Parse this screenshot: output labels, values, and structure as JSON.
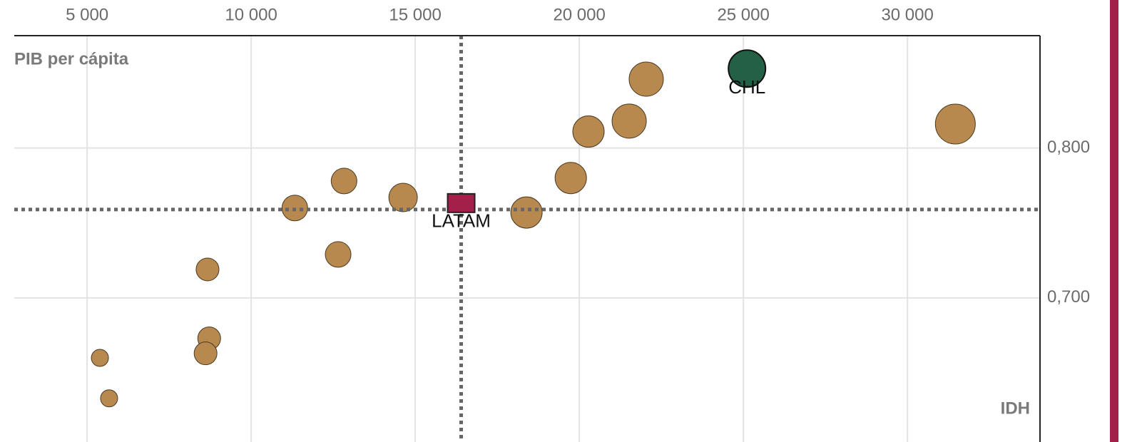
{
  "chart_data": {
    "type": "scatter",
    "x_label": "PIB per cápita",
    "y_label": "IDH",
    "xlim": [
      2780,
      34040
    ],
    "ylim": [
      0.611,
      0.875
    ],
    "xticks": [
      {
        "value": 5000,
        "label": "5 000"
      },
      {
        "value": 10000,
        "label": "10 000"
      },
      {
        "value": 15000,
        "label": "15 000"
      },
      {
        "value": 20000,
        "label": "20 000"
      },
      {
        "value": 25000,
        "label": "25 000"
      },
      {
        "value": 30000,
        "label": "30 000"
      }
    ],
    "yticks": [
      {
        "value": 0.7,
        "label": "0,700"
      },
      {
        "value": 0.8,
        "label": "0,800"
      }
    ],
    "grid": true,
    "color": "#b8894e",
    "x": [
      5390,
      5670,
      8670,
      8720,
      8610,
      11330,
      12650,
      12830,
      14630,
      18390,
      19740,
      20280,
      21520,
      22040,
      31460
    ],
    "y": [
      0.66,
      0.633,
      0.719,
      0.673,
      0.663,
      0.76,
      0.729,
      0.778,
      0.767,
      0.757,
      0.78,
      0.811,
      0.818,
      0.846,
      0.816
    ],
    "sizes": [
      144,
      144,
      256,
      256,
      256,
      324,
      324,
      324,
      400,
      484,
      484,
      484,
      576,
      576,
      784
    ],
    "highlights": [
      {
        "label": "CHL",
        "x": 25110,
        "y": 0.853,
        "size": 676,
        "color": "#236046",
        "marker": "circle"
      },
      {
        "label": "LATAM",
        "x": 16400,
        "y": 0.759,
        "color": "#a3204a",
        "marker": "square"
      }
    ]
  }
}
